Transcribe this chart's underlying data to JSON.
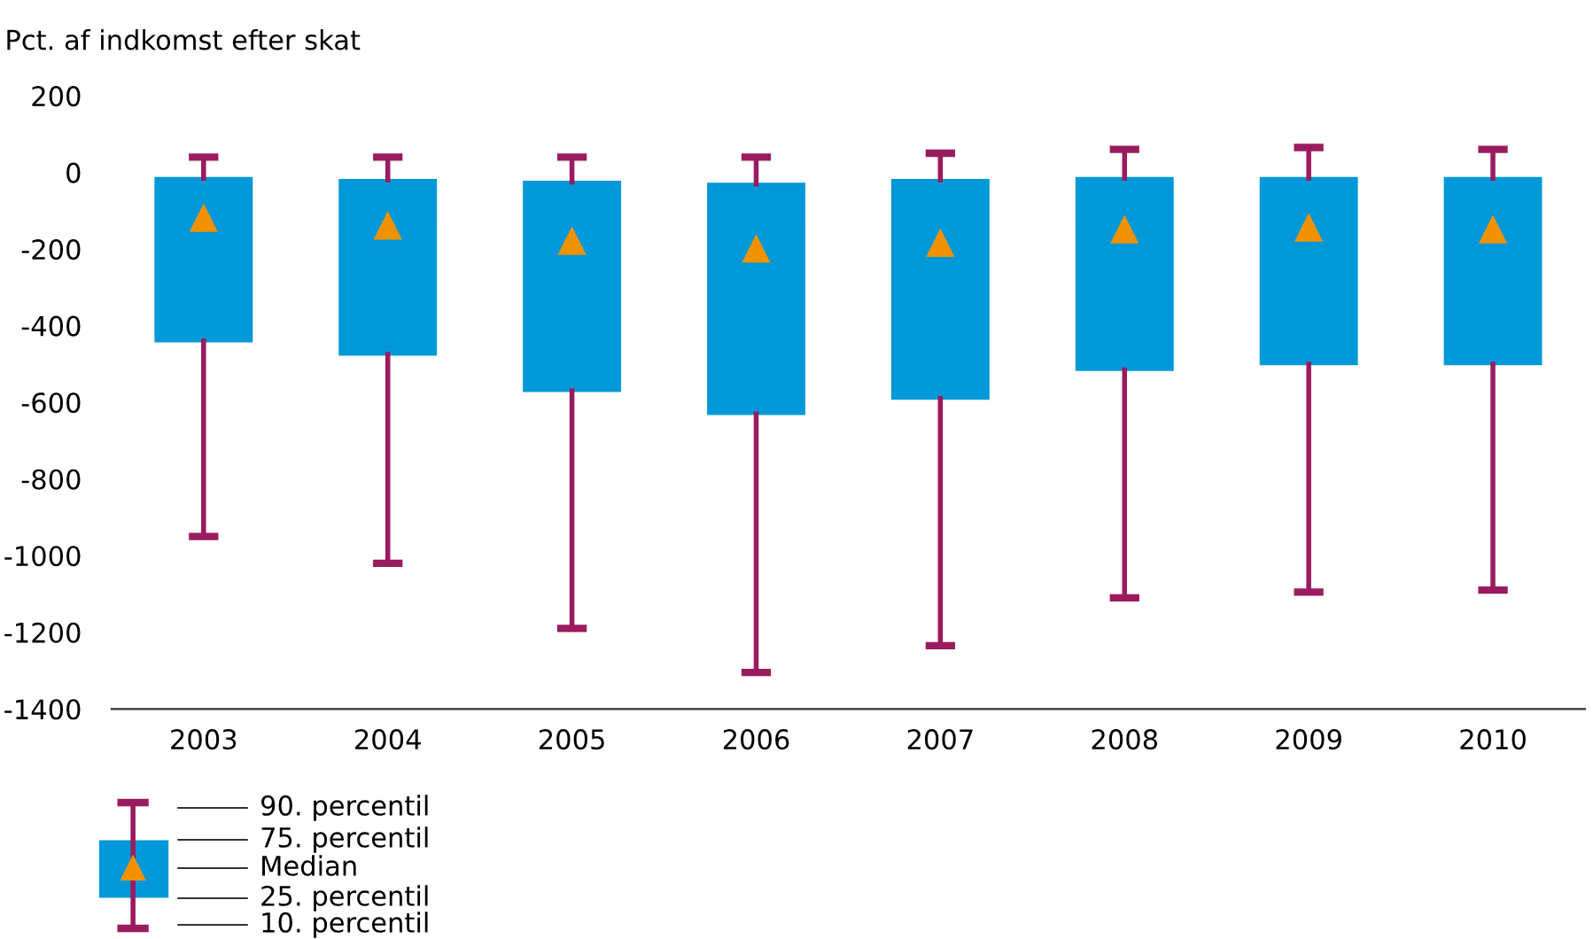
{
  "chart_data": {
    "type": "box",
    "ylabel": "Pct. af indkomst efter skat",
    "categories": [
      "2003",
      "2004",
      "2005",
      "2006",
      "2007",
      "2008",
      "2009",
      "2010"
    ],
    "series": [
      {
        "color": "#0098d8",
        "boxes": [
          {
            "low": -950,
            "q1": -440,
            "median": -120,
            "q3": -15,
            "high": 40
          },
          {
            "low": -1020,
            "q1": -475,
            "median": -140,
            "q3": -20,
            "high": 40
          },
          {
            "low": -1190,
            "q1": -570,
            "median": -180,
            "q3": -25,
            "high": 40
          },
          {
            "low": -1305,
            "q1": -630,
            "median": -200,
            "q3": -30,
            "high": 40
          },
          {
            "low": -1235,
            "q1": -590,
            "median": -185,
            "q3": -20,
            "high": 50
          },
          {
            "low": -1110,
            "q1": -515,
            "median": -150,
            "q3": -15,
            "high": 60
          },
          {
            "low": -1095,
            "q1": -500,
            "median": -145,
            "q3": -15,
            "high": 65
          },
          {
            "low": -1090,
            "q1": -500,
            "median": -150,
            "q3": -15,
            "high": 60
          }
        ]
      }
    ],
    "ylim": [
      -1400,
      200
    ],
    "yticks": [
      -1400,
      -1200,
      -1000,
      -800,
      -600,
      -400,
      -200,
      0,
      200
    ],
    "grid": false,
    "annotations": [
      "90. percentil",
      "75. percentil",
      "Median",
      "25. percentil",
      "10. percentil"
    ]
  }
}
